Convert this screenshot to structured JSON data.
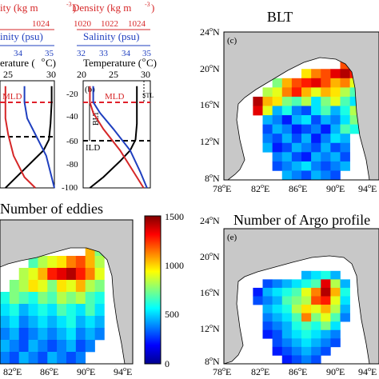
{
  "chart_data": [
    {
      "type": "line",
      "panel": "a",
      "axis_titles": {
        "density": "ity  (kg m",
        "density_exp": "-3",
        "density_close": ")",
        "salinity": "inity (psu)",
        "temperature": "erature (",
        "temperature_unit": "C)"
      },
      "density_ticks": [
        "1024"
      ],
      "salinity_ticks": [
        "34",
        "35"
      ],
      "temperature_ticks": [
        "25",
        "30"
      ],
      "annotations": {
        "mld": "MLD"
      },
      "temperature_xlim": [
        20,
        30
      ],
      "depth_ylim": [
        -100,
        0
      ],
      "mld_depth": -30,
      "ild_depth": -60,
      "series": [
        {
          "color": "#000000",
          "x": [
            29.5,
            29.5,
            29.3,
            29.0,
            28.0,
            26.0,
            23.0,
            21.0
          ],
          "y": [
            -5,
            -20,
            -40,
            -55,
            -65,
            -75,
            -90,
            -100
          ]
        },
        {
          "color": "#d62728",
          "x": [
            21.0,
            21.0,
            21.0,
            21.5,
            22.5,
            24.5,
            26.5
          ],
          "y": [
            -5,
            -20,
            -35,
            -50,
            -70,
            -90,
            -100
          ]
        },
        {
          "color": "#1f3fbf",
          "x": [
            24.5,
            24.5,
            25.0,
            26.5,
            28.5,
            29.5,
            30.0
          ],
          "y": [
            -5,
            -20,
            -35,
            -50,
            -70,
            -90,
            -100
          ]
        }
      ]
    },
    {
      "type": "line",
      "panel": "b",
      "label": "(b)",
      "axis_titles": {
        "density": "Density  (kg m",
        "density_exp": "-3",
        "density_close": ")",
        "salinity": "Salinity (psu)",
        "temperature": "Temperature (",
        "temperature_unit": "C)"
      },
      "density_ticks": [
        "1020",
        "1022",
        "1024"
      ],
      "salinity_ticks": [
        "32",
        "33",
        "34",
        "35"
      ],
      "temperature_ticks": [
        "20",
        "25",
        "30"
      ],
      "depth_ticks": [
        "-20",
        "-40",
        "-60",
        "-80",
        "-100"
      ],
      "annotations": {
        "mld": "MLD",
        "ild": "ILD",
        "blt": "BLT",
        "stl": "STL"
      },
      "temperature_xlim": [
        20,
        30
      ],
      "depth_ylim": [
        -100,
        0
      ],
      "mld_depth": -30,
      "ild_depth": -60,
      "series": [
        {
          "color": "#000000",
          "x": [
            28.0,
            28.0,
            28.0,
            27.8,
            27.0,
            25.5,
            23.0,
            21.0
          ],
          "y": [
            -5,
            -20,
            -40,
            -55,
            -65,
            -75,
            -90,
            -100
          ]
        },
        {
          "color": "#d62728",
          "x": [
            21.0,
            21.0,
            21.5,
            23.0,
            25.5,
            27.5,
            29.0
          ],
          "y": [
            -5,
            -20,
            -30,
            -45,
            -65,
            -85,
            -100
          ]
        },
        {
          "color": "#1f3fbf",
          "x": [
            21.5,
            21.5,
            22.5,
            24.5,
            27.0,
            28.5,
            29.5
          ],
          "y": [
            -5,
            -20,
            -30,
            -45,
            -65,
            -85,
            -100
          ]
        }
      ]
    },
    {
      "type": "heatmap",
      "panel": "c",
      "label": "(c)",
      "title": "BLT",
      "x_ticks": [
        "78",
        "82",
        "86",
        "90",
        "94"
      ],
      "y_ticks": [
        "24",
        "20",
        "16",
        "12",
        "8"
      ],
      "lon_range": [
        78,
        95
      ],
      "lat_range": [
        8,
        24
      ],
      "grid": [
        [
          -1,
          -1,
          -1,
          -1,
          -1,
          -1,
          -1,
          -1,
          -1,
          -1,
          -1,
          -1,
          -1,
          -1,
          -1,
          -1
        ],
        [
          -1,
          -1,
          -1,
          -1,
          -1,
          -1,
          -1,
          -1,
          -1,
          -1,
          -1,
          -1,
          -1,
          -1,
          -1,
          -1
        ],
        [
          -1,
          -1,
          -1,
          -1,
          -1,
          -1,
          -1,
          -1,
          -1,
          -1,
          -1,
          -1,
          -1,
          -1,
          -1,
          -1
        ],
        [
          -1,
          -1,
          -1,
          -1,
          -1,
          -1,
          -1,
          -1,
          -1,
          -1,
          -1,
          -1,
          0.8,
          0.9,
          -1,
          -1
        ],
        [
          -1,
          -1,
          -1,
          -1,
          -1,
          -1,
          -1,
          -1,
          0.65,
          0.75,
          0.8,
          0.9,
          0.95,
          0.85,
          -1,
          -1
        ],
        [
          -1,
          -1,
          -1,
          -1,
          -1,
          0.5,
          0.7,
          0.8,
          0.85,
          0.9,
          0.8,
          0.7,
          0.75,
          0.6,
          -1,
          -1
        ],
        [
          -1,
          -1,
          -1,
          -1,
          0.55,
          0.6,
          0.75,
          0.85,
          0.7,
          0.6,
          0.7,
          0.65,
          0.55,
          0.45,
          -1,
          -1
        ],
        [
          -1,
          -1,
          -1,
          0.95,
          0.7,
          0.65,
          0.5,
          0.45,
          0.55,
          0.35,
          0.5,
          0.6,
          0.45,
          0.35,
          -1,
          -1
        ],
        [
          -1,
          -1,
          -1,
          0.9,
          0.6,
          0.3,
          0.4,
          0.25,
          0.2,
          0.35,
          0.45,
          0.3,
          0.4,
          0.55,
          -1,
          -1
        ],
        [
          -1,
          -1,
          -1,
          -1,
          0.3,
          0.25,
          0.15,
          0.3,
          0.35,
          0.2,
          0.3,
          0.25,
          0.35,
          0.5,
          -1,
          -1
        ],
        [
          -1,
          -1,
          -1,
          -1,
          0.2,
          0.3,
          0.25,
          0.15,
          0.2,
          0.25,
          0.15,
          0.3,
          0.45,
          0.4,
          -1,
          -1
        ],
        [
          -1,
          -1,
          -1,
          -1,
          0.25,
          0.2,
          0.3,
          0.2,
          0.3,
          0.15,
          0.25,
          0.35,
          0.3,
          -1,
          -1,
          -1
        ],
        [
          -1,
          -1,
          -1,
          -1,
          0.3,
          0.15,
          0.2,
          0.3,
          0.25,
          0.2,
          0.3,
          0.2,
          0.25,
          -1,
          -1,
          -1
        ],
        [
          -1,
          -1,
          -1,
          -1,
          -1,
          0.25,
          0.3,
          0.2,
          0.15,
          0.3,
          0.25,
          0.3,
          0.2,
          -1,
          -1,
          -1
        ],
        [
          -1,
          -1,
          -1,
          -1,
          -1,
          0.2,
          0.25,
          0.3,
          0.35,
          0.25,
          0.2,
          0.25,
          0.3,
          -1,
          -1,
          -1
        ],
        [
          -1,
          -1,
          -1,
          -1,
          -1,
          -1,
          0.3,
          0.25,
          0.2,
          0.3,
          0.25,
          0.2,
          -1,
          -1,
          -1,
          -1
        ]
      ]
    },
    {
      "type": "heatmap",
      "panel": "d",
      "title": "Number of eddies",
      "x_ticks": [
        "82",
        "86",
        "90",
        "94"
      ],
      "colorbar": {
        "min": 0,
        "max": 1500,
        "ticks": [
          "1500",
          "1000",
          "500",
          "0"
        ]
      },
      "grid": [
        [
          -1,
          -1,
          -1,
          -1,
          -1,
          -1,
          -1,
          -1,
          -1,
          -1,
          -1,
          -1,
          -1,
          -1
        ],
        [
          -1,
          -1,
          -1,
          -1,
          -1,
          -1,
          -1,
          -1,
          -1,
          -1,
          -1,
          -1,
          -1,
          -1
        ],
        [
          -1,
          -1,
          -1,
          -1,
          -1,
          -1,
          -1,
          -1,
          -1,
          0.7,
          0.5,
          -1,
          -1,
          -1
        ],
        [
          -1,
          -1,
          -1,
          0.45,
          0.55,
          0.6,
          0.65,
          0.75,
          0.8,
          0.7,
          0.55,
          -1,
          -1,
          -1
        ],
        [
          -1,
          -1,
          0.55,
          0.6,
          0.7,
          0.85,
          0.9,
          0.95,
          0.85,
          0.75,
          0.6,
          -1,
          -1,
          -1
        ],
        [
          -1,
          0.5,
          0.55,
          0.65,
          0.6,
          0.5,
          0.65,
          0.6,
          0.7,
          0.55,
          0.5,
          -1,
          -1,
          -1
        ],
        [
          0.4,
          0.5,
          0.45,
          0.4,
          0.5,
          0.45,
          0.55,
          0.5,
          0.55,
          0.45,
          0.4,
          -1,
          -1,
          -1
        ],
        [
          0.35,
          0.4,
          0.3,
          0.35,
          0.4,
          0.35,
          0.45,
          0.4,
          0.35,
          0.45,
          0.35,
          -1,
          -1,
          -1
        ],
        [
          0.3,
          0.35,
          0.25,
          0.3,
          0.35,
          0.3,
          0.35,
          0.4,
          0.3,
          0.35,
          0.3,
          -1,
          -1,
          -1
        ],
        [
          0.25,
          0.3,
          0.2,
          0.25,
          0.3,
          0.25,
          0.3,
          0.35,
          0.25,
          0.3,
          0.25,
          -1,
          -1,
          -1
        ],
        [
          0.3,
          0.25,
          0.2,
          0.3,
          0.25,
          0.2,
          0.25,
          0.3,
          0.2,
          0.25,
          -1,
          -1,
          -1,
          -1
        ],
        [
          0.25,
          0.2,
          0.3,
          0.25,
          0.2,
          0.3,
          0.25,
          0.2,
          0.25,
          -1,
          -1,
          -1,
          -1,
          -1
        ]
      ]
    },
    {
      "type": "heatmap",
      "panel": "e",
      "label": "(e)",
      "title": "Number of Argo profile",
      "x_ticks": [
        "78",
        "82",
        "86",
        "90",
        "94"
      ],
      "y_ticks": [
        "24",
        "20",
        "16",
        "12",
        "8"
      ],
      "grid": [
        [
          -1,
          -1,
          -1,
          -1,
          -1,
          -1,
          -1,
          -1,
          -1,
          -1,
          -1,
          -1,
          -1,
          -1,
          -1,
          -1
        ],
        [
          -1,
          -1,
          -1,
          -1,
          -1,
          -1,
          -1,
          -1,
          -1,
          -1,
          -1,
          -1,
          -1,
          -1,
          -1,
          -1
        ],
        [
          -1,
          -1,
          -1,
          -1,
          -1,
          -1,
          -1,
          -1,
          -1,
          -1,
          -1,
          -1,
          -1,
          -1,
          -1,
          -1
        ],
        [
          -1,
          -1,
          -1,
          -1,
          -1,
          -1,
          -1,
          -1,
          -1,
          -1,
          -1,
          -1,
          -1,
          -1,
          -1,
          -1
        ],
        [
          -1,
          -1,
          -1,
          -1,
          -1,
          -1,
          -1,
          -1,
          -1,
          -1,
          -1,
          -1,
          -1,
          -1,
          -1,
          -1
        ],
        [
          -1,
          -1,
          -1,
          -1,
          -1,
          -1,
          -1,
          -1,
          0.3,
          0.35,
          0.4,
          0.3,
          -1,
          -1,
          -1,
          -1
        ],
        [
          -1,
          -1,
          -1,
          -1,
          0.2,
          0.25,
          0.3,
          0.35,
          0.4,
          0.45,
          0.9,
          0.55,
          0.3,
          -1,
          -1,
          -1
        ],
        [
          -1,
          -1,
          -1,
          0.15,
          0.3,
          0.35,
          0.4,
          0.45,
          0.6,
          0.75,
          0.95,
          0.7,
          0.4,
          -1,
          -1,
          -1
        ],
        [
          -1,
          -1,
          -1,
          0.2,
          0.25,
          0.3,
          0.45,
          0.5,
          0.55,
          0.8,
          0.85,
          0.6,
          0.35,
          -1,
          -1,
          -1
        ],
        [
          -1,
          -1,
          -1,
          -1,
          0.3,
          0.35,
          0.4,
          0.55,
          0.65,
          0.6,
          0.7,
          0.55,
          0.3,
          -1,
          -1,
          -1
        ],
        [
          -1,
          -1,
          -1,
          -1,
          0.25,
          0.3,
          0.35,
          0.45,
          0.75,
          0.5,
          0.6,
          0.45,
          0.25,
          -1,
          -1,
          -1
        ],
        [
          -1,
          -1,
          -1,
          -1,
          0.2,
          0.25,
          0.3,
          0.4,
          0.45,
          0.4,
          0.5,
          0.35,
          -1,
          -1,
          -1,
          -1
        ],
        [
          -1,
          -1,
          -1,
          -1,
          0.15,
          0.2,
          0.3,
          0.35,
          0.4,
          0.35,
          0.3,
          0.25,
          -1,
          -1,
          -1,
          -1
        ],
        [
          -1,
          -1,
          -1,
          -1,
          -1,
          0.2,
          0.25,
          0.3,
          0.35,
          0.3,
          0.25,
          0.2,
          -1,
          -1,
          -1,
          -1
        ],
        [
          -1,
          -1,
          -1,
          -1,
          -1,
          0.15,
          0.2,
          0.25,
          0.3,
          0.25,
          0.2,
          -1,
          -1,
          -1,
          -1,
          -1
        ],
        [
          -1,
          -1,
          -1,
          -1,
          -1,
          -1,
          0.15,
          0.2,
          0.25,
          0.2,
          -1,
          -1,
          -1,
          -1,
          -1,
          -1
        ]
      ]
    }
  ],
  "colors": {
    "land": "#c8c8c8",
    "mld_line": "#e0202a",
    "ild_line": "#000000"
  }
}
